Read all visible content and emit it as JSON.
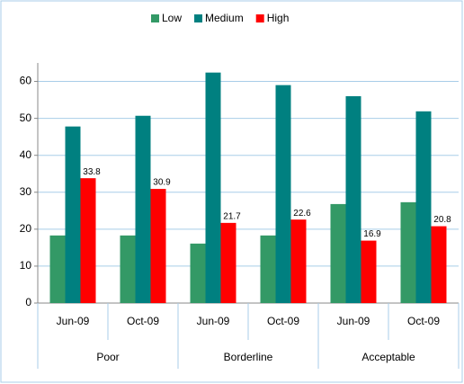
{
  "chart_data": {
    "type": "bar",
    "categories": [
      "Jun-09",
      "Oct-09",
      "Jun-09",
      "Oct-09",
      "Jun-09",
      "Oct-09"
    ],
    "groups": [
      "Poor",
      "Borderline",
      "Acceptable"
    ],
    "series": [
      {
        "name": "Low",
        "color": "#339966",
        "values": [
          18.3,
          18.3,
          16.1,
          18.3,
          26.8,
          27.3
        ]
      },
      {
        "name": "Medium",
        "color": "#008080",
        "values": [
          47.8,
          50.7,
          62.4,
          59.0,
          56.0,
          51.9
        ]
      },
      {
        "name": "High",
        "color": "#ff0000",
        "values": [
          33.8,
          30.9,
          21.7,
          22.6,
          16.9,
          20.8
        ],
        "data_labels": true
      }
    ],
    "ylim": [
      0,
      65
    ],
    "yticks": [
      0,
      10,
      20,
      30,
      40,
      50,
      60
    ],
    "grid": true,
    "legend": "top"
  }
}
